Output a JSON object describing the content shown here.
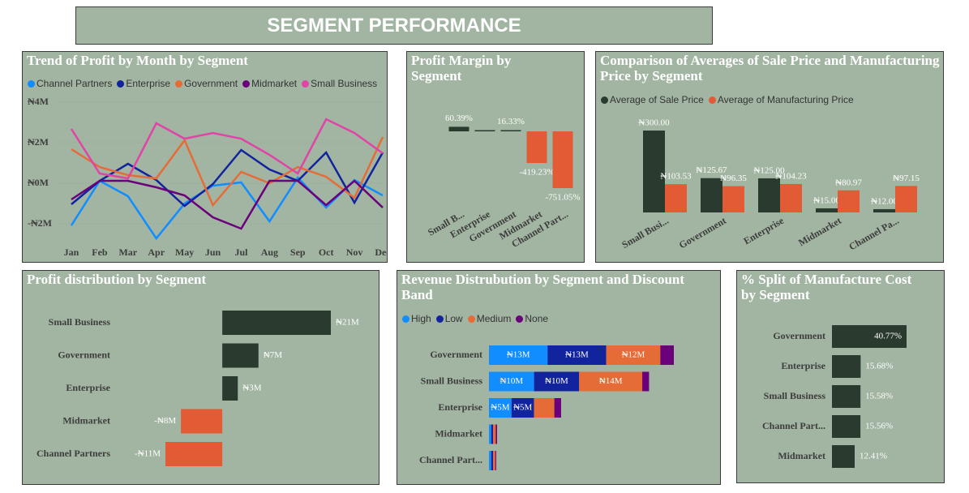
{
  "header": {
    "title": "SEGMENT PERFORMANCE"
  },
  "chart_data": [
    {
      "type": "line",
      "title": "Trend of Profit by Month by Segment",
      "categories": [
        "Jan",
        "Feb",
        "Mar",
        "Apr",
        "May",
        "Jun",
        "Jul",
        "Aug",
        "Sep",
        "Oct",
        "Nov",
        "Dec"
      ],
      "ylim": [
        -3000000,
        4200000
      ],
      "yticks": [
        {
          "value": 4000000,
          "label": "₦4M"
        },
        {
          "value": 2000000,
          "label": "₦2M"
        },
        {
          "value": 0,
          "label": "₦0M"
        },
        {
          "value": -2000000,
          "label": "-₦2M"
        }
      ],
      "grid": true,
      "series": [
        {
          "name": "Channel Partners",
          "color": "#118DFF",
          "values": [
            -2080000,
            120000,
            -640000,
            -2720000,
            -1000000,
            -120000,
            40000,
            -1880000,
            280000,
            -1200000,
            160000,
            -600000
          ]
        },
        {
          "name": "Enterprise",
          "color": "#12239E",
          "values": [
            -1040000,
            120000,
            960000,
            160000,
            -1120000,
            -40000,
            1640000,
            680000,
            120000,
            1520000,
            -960000,
            1520000
          ]
        },
        {
          "name": "Government",
          "color": "#E66C37",
          "values": [
            1680000,
            800000,
            400000,
            240000,
            2120000,
            -1080000,
            560000,
            0,
            800000,
            320000,
            -720000,
            2280000
          ]
        },
        {
          "name": "Midmarket",
          "color": "#6B007B",
          "values": [
            -800000,
            120000,
            120000,
            -200000,
            -600000,
            -1680000,
            -2240000,
            120000,
            120000,
            -1080000,
            120000,
            -1200000
          ]
        },
        {
          "name": "Small Business",
          "color": "#E044A7",
          "values": [
            2680000,
            480000,
            240000,
            2960000,
            2200000,
            2480000,
            2200000,
            1400000,
            480000,
            3160000,
            2480000,
            1480000
          ]
        }
      ]
    },
    {
      "type": "bar",
      "title": "Profit Margin by Segment",
      "categories": [
        "Small B...",
        "Enterprise",
        "Government",
        "Midmarket",
        "Channel Part..."
      ],
      "values": [
        60.39,
        2,
        16.33,
        -419.23,
        -751.05
      ],
      "value_labels": [
        "60.39%",
        null,
        "16.33%",
        "-419.23%",
        "-751.05%"
      ],
      "positive_color": "#2B3A2E",
      "negative_color": "#E35B35"
    },
    {
      "type": "grouped_bar",
      "title": "Comparison of Averages of Sale Price and Manufacturing Price by Segment",
      "categories": [
        "Small Busi...",
        "Government",
        "Enterprise",
        "Midmarket",
        "Channel Pa..."
      ],
      "series": [
        {
          "name": "Average of Sale Price",
          "color": "#2B3A2E",
          "values": [
            300,
            125.67,
            125,
            15,
            12
          ],
          "value_labels": [
            "₦300.00",
            "₦125.67",
            "₦125.00",
            "₦15.00",
            "₦12.00"
          ]
        },
        {
          "name": "Average of Manufacturing Price",
          "color": "#E35B35",
          "values": [
            103.53,
            96.35,
            104.23,
            80.97,
            97.15
          ],
          "value_labels": [
            "₦103.53",
            "₦96.35",
            "₦104.23",
            "₦80.97",
            "₦97.15"
          ]
        }
      ]
    },
    {
      "type": "hbar",
      "title": "Profit distribution by Segment",
      "categories": [
        "Small Business",
        "Government",
        "Enterprise",
        "Midmarket",
        "Channel Partners"
      ],
      "values": [
        21000000,
        7000000,
        3000000,
        -8000000,
        -11000000
      ],
      "value_labels": [
        "₦21M",
        "₦7M",
        "₦3M",
        "-₦8M",
        "-₦11M"
      ],
      "positive_color": "#2B3A2E",
      "negative_color": "#E35B35"
    },
    {
      "type": "stacked_hbar",
      "title": "Revenue Distrubution by Segment and Discount Band",
      "categories": [
        "Government",
        "Small Business",
        "Enterprise",
        "Midmarket",
        "Channel Part..."
      ],
      "series": [
        {
          "name": "High",
          "color": "#118DFF",
          "values": [
            13000000,
            10000000,
            5000000,
            500000,
            500000
          ],
          "value_labels": [
            "₦13M",
            "₦10M",
            "₦5M",
            null,
            null
          ]
        },
        {
          "name": "Low",
          "color": "#12239E",
          "values": [
            13000000,
            10000000,
            5000000,
            400000,
            400000
          ],
          "value_labels": [
            "₦13M",
            "₦10M",
            "₦5M",
            null,
            null
          ]
        },
        {
          "name": "Medium",
          "color": "#E66C37",
          "values": [
            12000000,
            14000000,
            4500000,
            600000,
            500000
          ],
          "value_labels": [
            "₦12M",
            "₦14M",
            null,
            null,
            null
          ]
        },
        {
          "name": "None",
          "color": "#6B007B",
          "values": [
            3000000,
            1500000,
            1500000,
            300000,
            200000
          ],
          "value_labels": [
            null,
            null,
            null,
            null,
            null
          ]
        }
      ]
    },
    {
      "type": "hbar",
      "title": "% Split of Manufacture Cost by Segment",
      "categories": [
        "Government",
        "Enterprise",
        "Small Business",
        "Channel Part...",
        "Midmarket"
      ],
      "values": [
        40.77,
        15.68,
        15.58,
        15.56,
        12.41
      ],
      "value_labels": [
        "40.77%",
        "15.68%",
        "15.58%",
        "15.56%",
        "12.41%"
      ],
      "color": "#2B3A2E"
    }
  ]
}
